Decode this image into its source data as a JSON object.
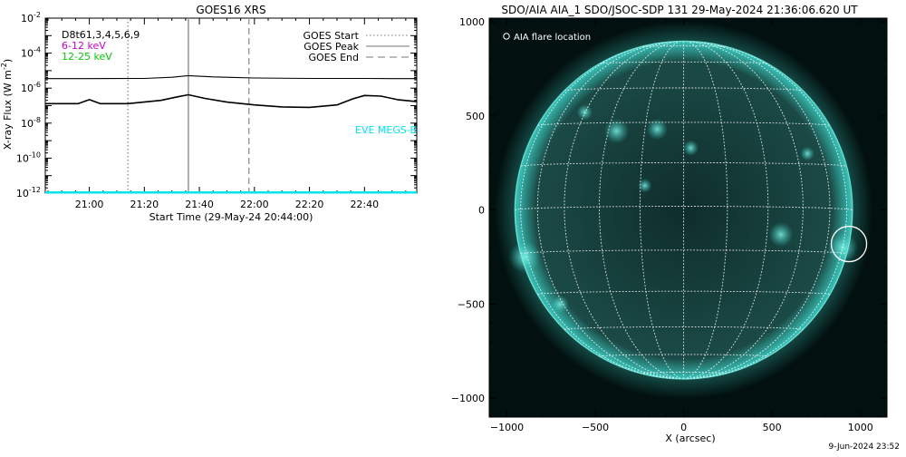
{
  "footer": {
    "timestamp": "9-Jun-2024 23:52"
  },
  "chart_data": [
    {
      "type": "line",
      "title": "GOES16 XRS",
      "xlabel": "Start Time (29-May-24 20:44:00)",
      "ylabel_main": "X-ray Flux (W m",
      "ylabel_sup": "-2",
      "ylabel_close": ")",
      "ylog": true,
      "ylim": [
        1e-12,
        0.01
      ],
      "xlim": [
        "20:44",
        "22:59"
      ],
      "y_ticks": [
        {
          "value": 1e-12,
          "base": "10",
          "exp": "-12"
        },
        {
          "value": 1e-10,
          "base": "10",
          "exp": "-10"
        },
        {
          "value": 1e-08,
          "base": "10",
          "exp": "-8"
        },
        {
          "value": 1e-06,
          "base": "10",
          "exp": "-6"
        },
        {
          "value": 0.0001,
          "base": "10",
          "exp": "-4"
        },
        {
          "value": 0.01,
          "base": "10",
          "exp": "-2"
        }
      ],
      "x_ticks": [
        "21:00",
        "21:20",
        "21:40",
        "22:00",
        "22:20",
        "22:40"
      ],
      "legend_left": [
        {
          "label": "D8t61,3,4,5,6,9",
          "color": "#000000"
        },
        {
          "label": "6-12 keV",
          "color": "#cc00cc"
        },
        {
          "label": "12-25 keV",
          "color": "#00cc00"
        }
      ],
      "legend_right": [
        {
          "label": "GOES Start",
          "style": "dotted"
        },
        {
          "label": "GOES Peak",
          "style": "solid"
        },
        {
          "label": "GOES End",
          "style": "dashed"
        }
      ],
      "annotation": {
        "label": "EVE MEGS-B",
        "color": "#00e5ee"
      },
      "events": {
        "start": "21:14",
        "peak": "21:36",
        "end": "21:58"
      },
      "series": [
        {
          "id": "long",
          "x": [
            "20:44",
            "21:00",
            "21:20",
            "21:30",
            "21:36",
            "21:45",
            "22:00",
            "22:20",
            "22:40",
            "22:50",
            "22:59"
          ],
          "y": [
            3.5e-06,
            3.5e-06,
            3.6e-06,
            4.2e-06,
            5.2e-06,
            4.4e-06,
            3.8e-06,
            3.6e-06,
            3.6e-06,
            3.5e-06,
            3.5e-06
          ],
          "color": "#000000"
        },
        {
          "id": "short",
          "x": [
            "20:44",
            "20:56",
            "21:00",
            "21:04",
            "21:14",
            "21:26",
            "21:32",
            "21:36",
            "21:42",
            "21:50",
            "22:00",
            "22:10",
            "22:20",
            "22:30",
            "22:36",
            "22:40",
            "22:46",
            "22:52",
            "22:59"
          ],
          "y": [
            1.3e-07,
            1.3e-07,
            2.2e-07,
            1.3e-07,
            1.3e-07,
            2e-07,
            3.2e-07,
            4.2e-07,
            2.6e-07,
            1.6e-07,
            1.1e-07,
            8.5e-08,
            8e-08,
            1.1e-07,
            2.5e-07,
            3.8e-07,
            3.5e-07,
            2.2e-07,
            1.7e-07
          ],
          "color": "#000000"
        },
        {
          "id": "eve",
          "x": [
            "20:44",
            "22:59"
          ],
          "y": [
            1.1e-12,
            1.1e-12
          ],
          "color": "#00e5ee"
        }
      ]
    },
    {
      "type": "image",
      "title": "SDO/AIA AIA_1 SDO/JSOC-SDP 131 29-May-2024 21:36:06.620 UT",
      "xlabel": "X (arcsec)",
      "xlim": [
        -1100,
        1150
      ],
      "ylim": [
        -1100,
        1020
      ],
      "x_ticks": [
        -1000,
        -500,
        0,
        500,
        1000
      ],
      "y_ticks": [
        -1000,
        -500,
        0,
        500,
        1000
      ],
      "legend": {
        "label": "AIA flare location",
        "color": "#ffffff"
      },
      "colors": {
        "background": "#02100f",
        "disk_dark": "#0e2d2b",
        "disk_bright": "#39c6bb",
        "limb": "#7af0e6",
        "grid": "#ffffff"
      },
      "flare_location": {
        "x": 935,
        "y": -180,
        "radius": 100
      }
    }
  ]
}
